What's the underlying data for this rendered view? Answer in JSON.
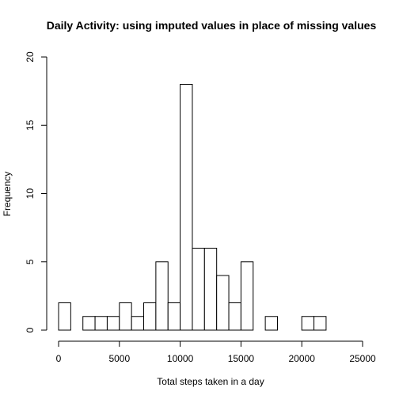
{
  "chart_data": {
    "type": "bar",
    "title": "Daily Activity: using imputed values in place of missing values",
    "xlabel": "Total steps taken in a day",
    "ylabel": "Frequency",
    "bin_width": 1000,
    "bin_starts": [
      0,
      1000,
      2000,
      3000,
      4000,
      5000,
      6000,
      7000,
      8000,
      9000,
      10000,
      11000,
      12000,
      13000,
      14000,
      15000,
      16000,
      17000,
      18000,
      19000,
      20000,
      21000
    ],
    "values": [
      2,
      0,
      1,
      1,
      1,
      2,
      1,
      2,
      5,
      2,
      18,
      6,
      6,
      4,
      2,
      5,
      0,
      1,
      0,
      0,
      1,
      1
    ],
    "xlim": [
      0,
      25000
    ],
    "ylim": [
      0,
      20
    ],
    "x_ticks": [
      0,
      5000,
      10000,
      15000,
      20000,
      25000
    ],
    "x_tick_labels": [
      "0",
      "5000",
      "10000",
      "15000",
      "20000",
      "25000"
    ],
    "y_ticks": [
      0,
      5,
      10,
      15,
      20
    ],
    "y_tick_labels": [
      "0",
      "5",
      "10",
      "15",
      "20"
    ],
    "grid": false,
    "colors": {
      "bar_fill": "#ffffff",
      "bar_stroke": "#000000",
      "axis": "#000000"
    }
  }
}
